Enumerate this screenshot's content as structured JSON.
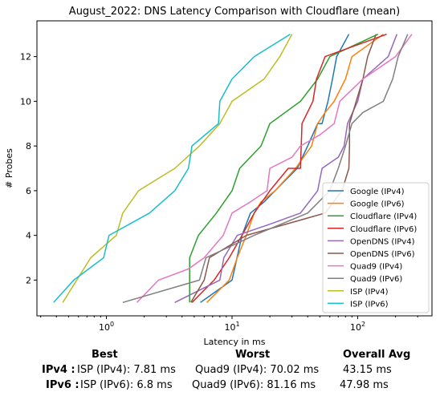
{
  "chart_data": {
    "type": "line",
    "title": "August_2022: DNS Latency Comparison with Cloudflare (mean)",
    "xlabel": "Latency in ms",
    "ylabel": "# Probes",
    "x_scale": "log",
    "xlim": [
      0.28,
      390
    ],
    "ylim": [
      0.4,
      13.6
    ],
    "x_ticks": [
      {
        "value": 1,
        "label": "10^0"
      },
      {
        "value": 10,
        "label": "10^1"
      },
      {
        "value": 100,
        "label": "10^2"
      }
    ],
    "y_ticks": [
      2,
      4,
      6,
      8,
      10,
      12
    ],
    "grid": false,
    "legend_position": "lower right",
    "series": [
      {
        "name": "Google (IPv4)",
        "color": "#1f77b4",
        "points": [
          [
            5.6,
            1
          ],
          [
            10,
            2
          ],
          [
            12,
            4
          ],
          [
            14,
            5
          ],
          [
            18,
            5.5
          ],
          [
            22,
            6
          ],
          [
            33,
            7
          ],
          [
            40,
            8
          ],
          [
            48,
            9
          ],
          [
            52,
            9
          ],
          [
            58,
            10
          ],
          [
            63,
            11
          ],
          [
            68,
            12
          ],
          [
            85,
            13
          ]
        ]
      },
      {
        "name": "Google (IPv6)",
        "color": "#ff7f0e",
        "points": [
          [
            6.3,
            1
          ],
          [
            9.5,
            2
          ],
          [
            11,
            3
          ],
          [
            13,
            4
          ],
          [
            15,
            5
          ],
          [
            17,
            5.5
          ],
          [
            22,
            6
          ],
          [
            32,
            7
          ],
          [
            43,
            8
          ],
          [
            48,
            9
          ],
          [
            55,
            9.5
          ],
          [
            65,
            10
          ],
          [
            80,
            11
          ],
          [
            90,
            12
          ],
          [
            160,
            13
          ]
        ]
      },
      {
        "name": "Cloudflare (IPv4)",
        "color": "#2ca02c",
        "points": [
          [
            4.6,
            1
          ],
          [
            4.6,
            3
          ],
          [
            5.4,
            4
          ],
          [
            7.5,
            5
          ],
          [
            10,
            6
          ],
          [
            11.5,
            7
          ],
          [
            17,
            8
          ],
          [
            20,
            9
          ],
          [
            35,
            10
          ],
          [
            48,
            11
          ],
          [
            60,
            12
          ],
          [
            145,
            13
          ]
        ]
      },
      {
        "name": "Cloudflare (IPv6)",
        "color": "#d62728",
        "points": [
          [
            4.8,
            1
          ],
          [
            7.2,
            2
          ],
          [
            9.5,
            3
          ],
          [
            12,
            4
          ],
          [
            15,
            5
          ],
          [
            20,
            6
          ],
          [
            28,
            7
          ],
          [
            35,
            7
          ],
          [
            36,
            9
          ],
          [
            44,
            10
          ],
          [
            47,
            11
          ],
          [
            55,
            12
          ],
          [
            170,
            13
          ]
        ]
      },
      {
        "name": "OpenDNS (IPv4)",
        "color": "#9467bd",
        "points": [
          [
            3.5,
            1
          ],
          [
            8,
            2
          ],
          [
            8.6,
            3
          ],
          [
            11,
            4
          ],
          [
            20,
            4.5
          ],
          [
            35,
            5
          ],
          [
            48,
            6
          ],
          [
            52,
            7
          ],
          [
            70,
            7.5
          ],
          [
            78,
            8
          ],
          [
            83,
            9
          ],
          [
            100,
            10
          ],
          [
            110,
            11
          ],
          [
            175,
            12
          ],
          [
            205,
            13
          ]
        ]
      },
      {
        "name": "OpenDNS (IPv6)",
        "color": "#8c564b",
        "points": [
          [
            4.7,
            1
          ],
          [
            6,
            2
          ],
          [
            6.6,
            3
          ],
          [
            13,
            4
          ],
          [
            55,
            5
          ],
          [
            75,
            6
          ],
          [
            85,
            7
          ],
          [
            86,
            8
          ],
          [
            86,
            9
          ],
          [
            110,
            11
          ],
          [
            120,
            12
          ],
          [
            140,
            13
          ]
        ]
      },
      {
        "name": "Quad9 (IPv4)",
        "color": "#e377c2",
        "points": [
          [
            1.75,
            1
          ],
          [
            2.6,
            2
          ],
          [
            4.5,
            2.5
          ],
          [
            6,
            3
          ],
          [
            8.5,
            4
          ],
          [
            10,
            5
          ],
          [
            14,
            5.5
          ],
          [
            19,
            6
          ],
          [
            20,
            7
          ],
          [
            30,
            7.5
          ],
          [
            35,
            8
          ],
          [
            50,
            8.5
          ],
          [
            65,
            9
          ],
          [
            72,
            10
          ],
          [
            110,
            11
          ],
          [
            200,
            12
          ],
          [
            270,
            13
          ]
        ]
      },
      {
        "name": "Quad9 (IPv6)",
        "color": "#7f7f7f",
        "points": [
          [
            1.35,
            1
          ],
          [
            5.5,
            2
          ],
          [
            6.2,
            3
          ],
          [
            15,
            4
          ],
          [
            40,
            5
          ],
          [
            60,
            6
          ],
          [
            70,
            7
          ],
          [
            80,
            8
          ],
          [
            90,
            9
          ],
          [
            110,
            9.5
          ],
          [
            160,
            10
          ],
          [
            190,
            11
          ],
          [
            210,
            12
          ],
          [
            250,
            13
          ]
        ]
      },
      {
        "name": "ISP (IPv4)",
        "color": "#bcbd22",
        "points": [
          [
            0.45,
            1
          ],
          [
            0.75,
            3
          ],
          [
            1.2,
            4
          ],
          [
            1.35,
            5
          ],
          [
            1.8,
            6
          ],
          [
            3.5,
            7
          ],
          [
            5.5,
            8
          ],
          [
            8,
            9
          ],
          [
            10,
            10
          ],
          [
            18,
            11
          ],
          [
            24,
            12
          ],
          [
            30,
            13
          ]
        ]
      },
      {
        "name": "ISP (IPv6)",
        "color": "#17becf",
        "points": [
          [
            0.38,
            1
          ],
          [
            0.55,
            2
          ],
          [
            0.95,
            3
          ],
          [
            1.05,
            4
          ],
          [
            2.2,
            5
          ],
          [
            3.5,
            6
          ],
          [
            4.5,
            7
          ],
          [
            4.8,
            8
          ],
          [
            7.8,
            9
          ],
          [
            8,
            10
          ],
          [
            10,
            11
          ],
          [
            15,
            12
          ],
          [
            29,
            13
          ]
        ]
      }
    ]
  },
  "stats": {
    "headers": {
      "best": "Best",
      "worst": "Worst",
      "overall": "Overall Avg"
    },
    "rows": [
      {
        "label": "IPv4 :",
        "best": "ISP (IPv4): 7.81 ms",
        "worst": "Quad9 (IPv4): 70.02 ms",
        "overall": "43.15 ms"
      },
      {
        "label": "IPv6 :",
        "best": "ISP (IPv6): 6.8 ms",
        "worst": "Quad9 (IPv6): 81.16 ms",
        "overall": "47.98 ms"
      }
    ]
  }
}
